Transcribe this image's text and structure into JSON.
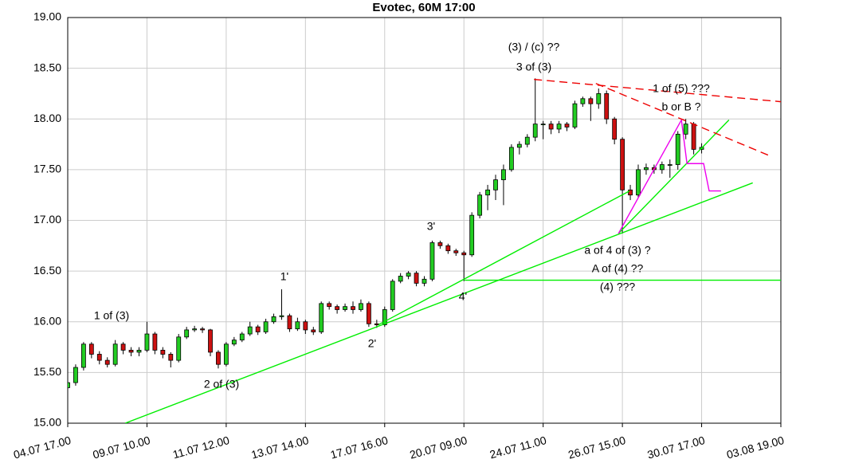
{
  "chart_data": {
    "type": "candlestick",
    "title": "Evotec, 60M 17:00",
    "x": [
      0,
      2,
      4,
      6,
      8,
      10,
      12,
      14,
      16,
      18,
      20,
      22,
      24,
      26,
      28,
      30,
      32,
      34,
      36,
      38,
      40,
      42,
      44,
      46,
      48,
      50,
      52,
      54,
      56,
      58,
      60,
      62,
      64,
      66,
      68,
      70,
      72,
      74,
      76,
      78,
      80,
      82,
      84,
      86,
      88,
      90,
      92,
      94,
      96,
      98,
      100,
      102,
      104,
      106,
      108,
      110,
      112,
      114,
      116,
      118,
      120,
      122,
      124,
      126,
      128,
      130,
      132,
      134,
      136,
      138,
      140,
      142,
      144,
      146,
      148,
      150,
      152,
      154,
      156,
      158,
      160
    ],
    "open": [
      15.35,
      15.4,
      15.55,
      15.78,
      15.68,
      15.62,
      15.58,
      15.78,
      15.72,
      15.7,
      15.72,
      15.88,
      15.72,
      15.68,
      15.62,
      15.85,
      15.92,
      15.93,
      15.92,
      15.7,
      15.58,
      15.78,
      15.82,
      15.88,
      15.95,
      15.9,
      16.0,
      16.05,
      16.06,
      15.93,
      16.0,
      15.92,
      15.9,
      16.18,
      16.15,
      16.12,
      16.15,
      16.12,
      16.18,
      15.98,
      15.97,
      16.12,
      16.4,
      16.45,
      16.48,
      16.38,
      16.42,
      16.78,
      16.75,
      16.7,
      16.68,
      16.66,
      17.05,
      17.25,
      17.3,
      17.4,
      17.5,
      17.72,
      17.75,
      17.82,
      17.95,
      17.95,
      17.9,
      17.95,
      17.92,
      18.15,
      18.2,
      18.15,
      18.25,
      18.0,
      17.8,
      17.3,
      17.25,
      17.5,
      17.52,
      17.5,
      17.55,
      17.55,
      17.85,
      17.95,
      17.7
    ],
    "high": [
      15.45,
      15.58,
      15.8,
      15.8,
      15.71,
      15.65,
      15.82,
      15.8,
      15.75,
      15.75,
      16.0,
      15.9,
      15.75,
      15.7,
      15.88,
      15.95,
      15.96,
      15.95,
      15.93,
      15.72,
      15.8,
      15.85,
      15.9,
      16.0,
      15.97,
      16.03,
      16.08,
      16.32,
      16.08,
      16.04,
      16.02,
      15.95,
      16.2,
      16.2,
      16.17,
      16.18,
      16.2,
      16.22,
      16.2,
      16.02,
      16.15,
      16.42,
      16.48,
      16.5,
      16.5,
      16.45,
      16.8,
      16.8,
      16.77,
      16.72,
      16.7,
      17.08,
      17.28,
      17.35,
      17.45,
      17.55,
      17.75,
      17.78,
      17.85,
      18.4,
      17.98,
      17.98,
      17.98,
      17.97,
      18.18,
      18.22,
      18.22,
      18.3,
      18.28,
      18.02,
      17.82,
      17.35,
      17.55,
      17.56,
      17.55,
      17.58,
      17.6,
      17.88,
      18.0,
      17.97,
      17.76
    ],
    "low": [
      15.31,
      15.37,
      15.52,
      15.64,
      15.58,
      15.55,
      15.56,
      15.68,
      15.66,
      15.66,
      15.7,
      15.68,
      15.64,
      15.55,
      15.6,
      15.83,
      15.9,
      15.89,
      15.66,
      15.54,
      15.56,
      15.76,
      15.8,
      15.86,
      15.87,
      15.88,
      15.98,
      16.02,
      15.9,
      15.91,
      15.88,
      15.87,
      15.88,
      16.12,
      16.08,
      16.1,
      16.08,
      16.1,
      15.95,
      15.94,
      15.95,
      16.1,
      16.38,
      16.42,
      16.35,
      16.35,
      16.4,
      16.72,
      16.67,
      16.65,
      16.4,
      16.64,
      17.02,
      17.1,
      17.2,
      17.15,
      17.48,
      17.65,
      17.72,
      17.78,
      17.8,
      17.85,
      17.86,
      17.88,
      17.9,
      18.12,
      17.98,
      18.1,
      17.95,
      17.75,
      16.87,
      17.2,
      17.22,
      17.45,
      17.46,
      17.46,
      17.42,
      17.5,
      17.8,
      17.65,
      17.66
    ],
    "close": [
      15.4,
      15.55,
      15.78,
      15.68,
      15.62,
      15.58,
      15.78,
      15.72,
      15.7,
      15.72,
      15.88,
      15.72,
      15.68,
      15.62,
      15.85,
      15.92,
      15.93,
      15.92,
      15.7,
      15.58,
      15.78,
      15.82,
      15.88,
      15.95,
      15.9,
      16.0,
      16.05,
      16.06,
      15.93,
      16.0,
      15.92,
      15.9,
      16.18,
      16.15,
      16.12,
      16.15,
      16.12,
      16.18,
      15.98,
      15.97,
      16.12,
      16.4,
      16.45,
      16.48,
      16.38,
      16.42,
      16.78,
      16.75,
      16.7,
      16.68,
      16.66,
      17.05,
      17.25,
      17.3,
      17.4,
      17.5,
      17.72,
      17.75,
      17.82,
      17.95,
      17.95,
      17.9,
      17.95,
      17.92,
      18.15,
      18.2,
      18.15,
      18.25,
      18.0,
      17.8,
      17.3,
      17.25,
      17.5,
      17.52,
      17.5,
      17.55,
      17.55,
      17.85,
      17.95,
      17.7,
      17.72
    ],
    "up_color": "#22cc22",
    "down_color": "#cc1111",
    "xlim": [
      0,
      180
    ],
    "ylim": [
      15,
      19
    ],
    "xticks": [
      {
        "value": 0,
        "label": "04.07 17.00"
      },
      {
        "value": 20,
        "label": "09.07 10.00"
      },
      {
        "value": 40,
        "label": "11.07 12.00"
      },
      {
        "value": 60,
        "label": "13.07 14.00"
      },
      {
        "value": 80,
        "label": "17.07 16.00"
      },
      {
        "value": 100,
        "label": "20.07 09.00"
      },
      {
        "value": 120,
        "label": "24.07 11.00"
      },
      {
        "value": 140,
        "label": "26.07 15.00"
      },
      {
        "value": 160,
        "label": "30.07 17.00"
      },
      {
        "value": 180,
        "label": "03.08 19.00"
      }
    ],
    "yticks": [
      {
        "value": 15,
        "label": "15.00"
      },
      {
        "value": 15.5,
        "label": "15.50"
      },
      {
        "value": 16,
        "label": "16.00"
      },
      {
        "value": 16.5,
        "label": "16.50"
      },
      {
        "value": 17,
        "label": "17.00"
      },
      {
        "value": 17.5,
        "label": "17.50"
      },
      {
        "value": 18,
        "label": "18.00"
      },
      {
        "value": 18.5,
        "label": "18.50"
      },
      {
        "value": 19,
        "label": "19.00"
      }
    ],
    "grid": true,
    "trendlines": [
      {
        "color": "#00ee00",
        "dash": false,
        "x": [
          14.5,
          172.9
        ],
        "y": [
          15.0,
          17.37
        ]
      },
      {
        "color": "#00ee00",
        "dash": false,
        "x": [
          78.4,
          141.8
        ],
        "y": [
          15.97,
          17.29
        ]
      },
      {
        "color": "#00ee00",
        "dash": false,
        "x": [
          100.2,
          180
        ],
        "y": [
          16.41,
          16.41
        ]
      },
      {
        "color": "#00ee00",
        "dash": false,
        "x": [
          139,
          166.9
        ],
        "y": [
          16.87,
          17.99
        ]
      },
      {
        "color": "#ee00ee",
        "dash": false,
        "x": [
          139,
          154.9,
          156.3,
          160.5,
          161.9,
          164.9
        ],
        "y": [
          16.87,
          17.99,
          17.56,
          17.56,
          17.29,
          17.29
        ]
      },
      {
        "color": "#ee0000",
        "dash": true,
        "x": [
          117.7,
          180
        ],
        "y": [
          18.39,
          18.17
        ]
      },
      {
        "color": "#ee0000",
        "dash": true,
        "x": [
          133.3,
          177
        ],
        "y": [
          18.35,
          17.64
        ]
      }
    ],
    "annotations": [
      "(3) / (c) ??",
      "3 of (3)",
      "1 of (5) ???",
      "b or B ?",
      "a of 4 of (3) ?",
      "A of (4) ??",
      "(4) ???",
      "1 of (3)",
      "2 of (3)",
      "1'",
      "3'",
      "2'",
      "4'"
    ]
  }
}
